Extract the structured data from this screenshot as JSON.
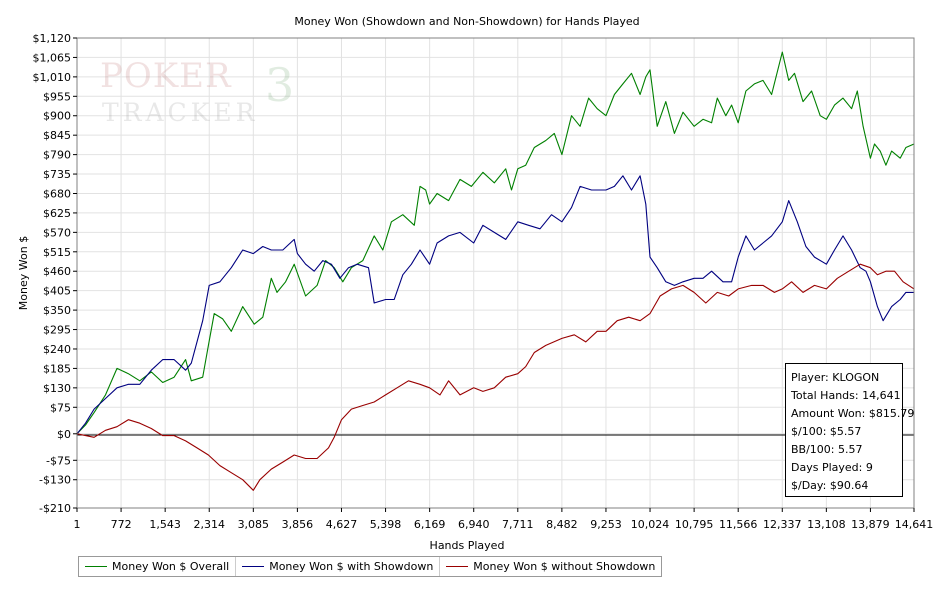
{
  "watermark": {
    "logo_text_top": "POKER",
    "logo_text_bottom": "TRACKER",
    "logo_mark": "3"
  },
  "stats": {
    "player": "Player: KLOGON",
    "total_hands": "Total Hands: 14,641",
    "amount_won": "Amount Won: $815.79",
    "per100": "$/100: $5.57",
    "bb100": "BB/100: 5.57",
    "days_played": "Days Played: 9",
    "per_day": "$/Day: $90.64"
  },
  "chart_data": {
    "type": "line",
    "title": "Money Won (Showdown and Non-Showdown) for Hands Played",
    "xlabel": "Hands Played",
    "ylabel": "Money Won $",
    "xlim": [
      1,
      14641
    ],
    "ylim": [
      -210,
      1120
    ],
    "x_ticks": [
      1,
      772,
      1543,
      2314,
      3085,
      3856,
      4627,
      5398,
      6169,
      6940,
      7711,
      8482,
      9253,
      10024,
      10795,
      11566,
      12337,
      13108,
      13879,
      14641
    ],
    "x_tick_labels": [
      "1",
      "772",
      "1,543",
      "2,314",
      "3,085",
      "3,856",
      "4,627",
      "5,398",
      "6,169",
      "6,940",
      "7,711",
      "8,482",
      "9,253",
      "10,024",
      "10,795",
      "11,566",
      "12,337",
      "13,108",
      "13,879",
      "14,641"
    ],
    "y_ticks": [
      -210,
      -130,
      -75,
      0,
      75,
      130,
      185,
      240,
      295,
      350,
      405,
      460,
      515,
      570,
      625,
      680,
      735,
      790,
      845,
      900,
      955,
      1010,
      1065,
      1120
    ],
    "y_tick_labels": [
      "-$210",
      "-$130",
      "-$75",
      "$0",
      "$75",
      "$130",
      "$185",
      "$240",
      "$295",
      "$350",
      "$405",
      "$460",
      "$515",
      "$570",
      "$625",
      "$680",
      "$735",
      "$790",
      "$845",
      "$900",
      "$955",
      "$1,010",
      "$1,065",
      "$1,120"
    ],
    "grid": true,
    "legend_position": "bottom-left",
    "series": [
      {
        "name": "Money Won $ Overall",
        "color": "#008000",
        "x": [
          1,
          150,
          300,
          500,
          700,
          900,
          1100,
          1300,
          1500,
          1700,
          1900,
          2000,
          2200,
          2300,
          2400,
          2550,
          2700,
          2900,
          3100,
          3250,
          3400,
          3500,
          3650,
          3800,
          4000,
          4200,
          4350,
          4500,
          4650,
          4800,
          5000,
          5200,
          5350,
          5500,
          5700,
          5900,
          6000,
          6100,
          6169,
          6300,
          6500,
          6700,
          6900,
          7100,
          7300,
          7500,
          7600,
          7711,
          7850,
          8000,
          8200,
          8350,
          8482,
          8650,
          8800,
          8950,
          9100,
          9253,
          9400,
          9550,
          9700,
          9850,
          9950,
          10024,
          10150,
          10300,
          10450,
          10600,
          10795,
          10950,
          11100,
          11200,
          11350,
          11450,
          11566,
          11700,
          11850,
          12000,
          12150,
          12337,
          12450,
          12550,
          12700,
          12850,
          13000,
          13108,
          13250,
          13400,
          13550,
          13650,
          13750,
          13879,
          13950,
          14050,
          14150,
          14250,
          14400,
          14500,
          14641
        ],
        "y": [
          0,
          25,
          60,
          110,
          185,
          170,
          150,
          175,
          145,
          160,
          210,
          150,
          160,
          250,
          340,
          325,
          290,
          360,
          310,
          330,
          440,
          400,
          430,
          480,
          390,
          420,
          490,
          470,
          430,
          470,
          490,
          560,
          520,
          600,
          620,
          590,
          700,
          690,
          650,
          680,
          660,
          720,
          700,
          740,
          710,
          750,
          690,
          750,
          760,
          810,
          830,
          850,
          790,
          900,
          870,
          950,
          920,
          900,
          960,
          990,
          1020,
          960,
          1010,
          1030,
          870,
          940,
          850,
          910,
          870,
          890,
          880,
          950,
          900,
          930,
          880,
          970,
          990,
          1000,
          960,
          1080,
          1000,
          1020,
          940,
          970,
          900,
          890,
          930,
          950,
          920,
          970,
          870,
          780,
          820,
          800,
          760,
          800,
          780,
          810,
          820
        ]
      },
      {
        "name": "Money Won $ with Showdown",
        "color": "#000080",
        "x": [
          1,
          150,
          300,
          500,
          700,
          900,
          1100,
          1300,
          1500,
          1700,
          1900,
          2000,
          2200,
          2314,
          2500,
          2700,
          2900,
          3085,
          3250,
          3400,
          3600,
          3800,
          3856,
          4000,
          4150,
          4300,
          4450,
          4600,
          4750,
          4900,
          5100,
          5200,
          5398,
          5550,
          5700,
          5850,
          6000,
          6169,
          6300,
          6500,
          6700,
          6940,
          7100,
          7300,
          7500,
          7711,
          7900,
          8100,
          8300,
          8482,
          8650,
          8800,
          9000,
          9253,
          9400,
          9550,
          9700,
          9850,
          9950,
          10024,
          10150,
          10300,
          10450,
          10600,
          10795,
          10950,
          11100,
          11300,
          11450,
          11566,
          11700,
          11850,
          12000,
          12150,
          12337,
          12450,
          12600,
          12750,
          12900,
          13108,
          13250,
          13400,
          13550,
          13700,
          13800,
          13879,
          14000,
          14100,
          14250,
          14400,
          14500,
          14641
        ],
        "y": [
          0,
          30,
          70,
          100,
          130,
          140,
          140,
          180,
          210,
          210,
          180,
          200,
          320,
          420,
          430,
          470,
          520,
          510,
          530,
          520,
          520,
          550,
          510,
          480,
          460,
          490,
          480,
          440,
          470,
          480,
          470,
          370,
          380,
          380,
          450,
          480,
          520,
          480,
          540,
          560,
          570,
          540,
          590,
          570,
          550,
          600,
          590,
          580,
          620,
          600,
          640,
          700,
          690,
          690,
          700,
          730,
          690,
          730,
          650,
          500,
          470,
          430,
          420,
          430,
          440,
          440,
          460,
          430,
          430,
          500,
          560,
          520,
          540,
          560,
          600,
          660,
          600,
          530,
          500,
          480,
          520,
          560,
          520,
          470,
          460,
          430,
          360,
          320,
          360,
          380,
          400,
          400
        ]
      },
      {
        "name": "Money Won $ without Showdown",
        "color": "#990000",
        "x": [
          1,
          300,
          500,
          700,
          900,
          1100,
          1300,
          1500,
          1700,
          1900,
          2100,
          2300,
          2500,
          2700,
          2900,
          3085,
          3200,
          3400,
          3600,
          3800,
          4000,
          4200,
          4400,
          4500,
          4627,
          4800,
          5000,
          5200,
          5398,
          5600,
          5800,
          6000,
          6169,
          6350,
          6500,
          6700,
          6940,
          7100,
          7300,
          7500,
          7711,
          7850,
          8000,
          8200,
          8482,
          8700,
          8900,
          9100,
          9253,
          9450,
          9650,
          9850,
          10024,
          10200,
          10400,
          10600,
          10795,
          11000,
          11200,
          11400,
          11566,
          11800,
          12000,
          12200,
          12337,
          12500,
          12700,
          12900,
          13108,
          13300,
          13500,
          13700,
          13879,
          14000,
          14150,
          14300,
          14450,
          14641
        ],
        "y": [
          0,
          -10,
          10,
          20,
          40,
          30,
          15,
          -5,
          -5,
          -20,
          -40,
          -60,
          -90,
          -110,
          -130,
          -160,
          -130,
          -100,
          -80,
          -60,
          -70,
          -70,
          -40,
          -10,
          40,
          70,
          80,
          90,
          110,
          130,
          150,
          140,
          130,
          110,
          150,
          110,
          130,
          120,
          130,
          160,
          170,
          190,
          230,
          250,
          270,
          280,
          260,
          290,
          290,
          320,
          330,
          320,
          340,
          390,
          410,
          420,
          400,
          370,
          400,
          390,
          410,
          420,
          420,
          400,
          410,
          430,
          400,
          420,
          410,
          440,
          460,
          480,
          470,
          450,
          460,
          460,
          430,
          410
        ]
      }
    ]
  }
}
